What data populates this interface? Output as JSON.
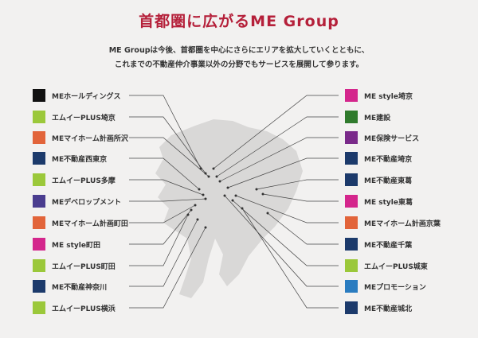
{
  "title": "首都圏に広がるME Group",
  "description": [
    "ME Groupは今後、首都圏を中心にさらにエリアを拡大していくとともに、",
    "これまでの不動産仲介事業以外の分野でもサービスを展開して参ります。"
  ],
  "colors": {
    "title": "#b5203a",
    "map": "#d9d8d7",
    "holdings": "#111111",
    "plus": "#9bc83a",
    "myhome": "#e2643a",
    "fudosan": "#1c3a6b",
    "develop": "#4a3d8f",
    "style": "#d4268c",
    "kensetsu": "#2f7a2c",
    "hoken": "#7a2a8a",
    "promotion": "#2a7cc0"
  },
  "left_items": [
    {
      "label": "MEホールディングス",
      "icon": "holdings"
    },
    {
      "label": "エムイーPLUS埼京",
      "icon": "plus"
    },
    {
      "label": "MEマイホーム計画所沢",
      "icon": "myhome"
    },
    {
      "label": "ME不動産西東京",
      "icon": "fudosan"
    },
    {
      "label": "エムイーPLUS多摩",
      "icon": "plus"
    },
    {
      "label": "MEデベロップメント",
      "icon": "develop"
    },
    {
      "label": "MEマイホーム計画町田",
      "icon": "myhome"
    },
    {
      "label": "ME style町田",
      "icon": "style"
    },
    {
      "label": "エムイーPLUS町田",
      "icon": "plus"
    },
    {
      "label": "ME不動産神奈川",
      "icon": "fudosan"
    },
    {
      "label": "エムイーPLUS横浜",
      "icon": "plus"
    }
  ],
  "right_items": [
    {
      "label": "ME style埼京",
      "icon": "style"
    },
    {
      "label": "ME建設",
      "icon": "kensetsu"
    },
    {
      "label": "ME保険サービス",
      "icon": "hoken"
    },
    {
      "label": "ME不動産埼京",
      "icon": "fudosan"
    },
    {
      "label": "ME不動産東葛",
      "icon": "fudosan"
    },
    {
      "label": "ME style東葛",
      "icon": "style"
    },
    {
      "label": "MEマイホーム計画京葉",
      "icon": "myhome"
    },
    {
      "label": "ME不動産千葉",
      "icon": "fudosan"
    },
    {
      "label": "エムイーPLUS城東",
      "icon": "plus"
    },
    {
      "label": "MEプロモーション",
      "icon": "promotion"
    },
    {
      "label": "ME不動産城北",
      "icon": "fudosan"
    }
  ]
}
